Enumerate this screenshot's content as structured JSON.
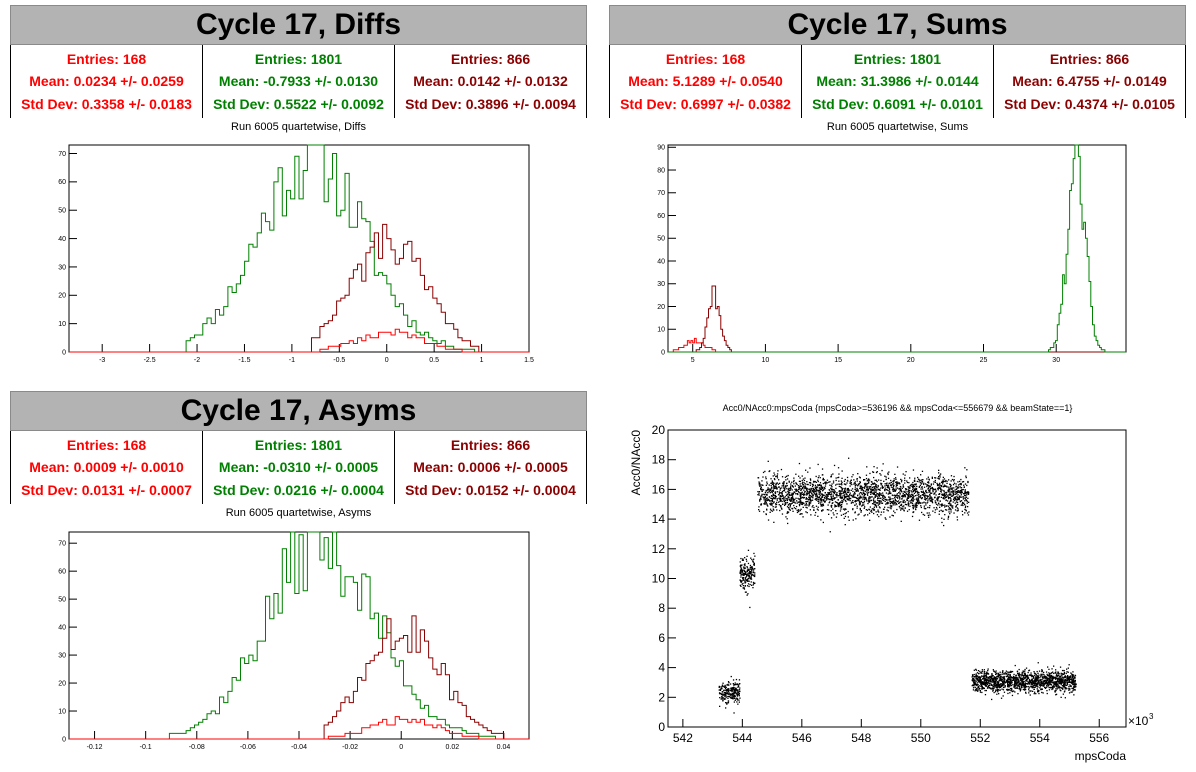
{
  "colors": {
    "red": "#ff0000",
    "green": "#008000",
    "darkred": "#8b0000",
    "header_bg": "#b3b3b3"
  },
  "panels": {
    "diffs": {
      "title": "Cycle 17, Diffs",
      "stats": [
        {
          "entries": "Entries: 168",
          "mean": "Mean: 0.0234 +/- 0.0259",
          "std": "Std Dev: 0.3358 +/- 0.0183",
          "color": "#ff0000"
        },
        {
          "entries": "Entries: 1801",
          "mean": "Mean: -0.7933 +/- 0.0130",
          "std": "Std Dev: 0.5522 +/- 0.0092",
          "color": "#008000"
        },
        {
          "entries": "Entries: 866",
          "mean": "Mean: 0.0142 +/- 0.0132",
          "std": "Std Dev: 0.3896 +/- 0.0094",
          "color": "#8b0000"
        }
      ],
      "subtitle": "Run 6005 quartetwise, Diffs"
    },
    "sums": {
      "title": "Cycle 17, Sums",
      "stats": [
        {
          "entries": "Entries: 168",
          "mean": "Mean: 5.1289 +/- 0.0540",
          "std": "Std Dev: 0.6997 +/- 0.0382",
          "color": "#ff0000"
        },
        {
          "entries": "Entries: 1801",
          "mean": "Mean: 31.3986 +/- 0.0144",
          "std": "Std Dev: 0.6091 +/- 0.0101",
          "color": "#008000"
        },
        {
          "entries": "Entries: 866",
          "mean": "Mean: 6.4755 +/- 0.0149",
          "std": "Std Dev: 0.4374 +/- 0.0105",
          "color": "#8b0000"
        }
      ],
      "subtitle": "Run 6005 quartetwise, Sums"
    },
    "asyms": {
      "title": "Cycle 17, Asyms",
      "stats": [
        {
          "entries": "Entries: 168",
          "mean": "Mean: 0.0009 +/- 0.0010",
          "std": "Std Dev: 0.0131 +/- 0.0007",
          "color": "#ff0000"
        },
        {
          "entries": "Entries: 1801",
          "mean": "Mean: -0.0310 +/- 0.0005",
          "std": "Std Dev: 0.0216 +/- 0.0004",
          "color": "#008000"
        },
        {
          "entries": "Entries: 866",
          "mean": "Mean: 0.0006 +/- 0.0005",
          "std": "Std Dev: 0.0152 +/- 0.0004",
          "color": "#8b0000"
        }
      ],
      "subtitle": "Run 6005 quartetwise, Asyms"
    },
    "scatter": {
      "title": "Acc0/NAcc0:mpsCoda {mpsCoda>=536196 && mpsCoda<=556679 && beamState==1}",
      "ylabel": "Acc0/NAcc0",
      "xlabel": "mpsCoda",
      "exponent": "×10",
      "exponent_power": "3"
    }
  },
  "chart_data": [
    {
      "type": "histogram",
      "name": "diffs",
      "xlim": [
        -3.35,
        1.5
      ],
      "ylim": [
        0,
        73
      ],
      "xticks": [
        -3,
        -2.5,
        -2,
        -1.5,
        -1,
        -0.5,
        0,
        0.5,
        1,
        1.5
      ],
      "yticks": [
        0,
        10,
        20,
        30,
        40,
        50,
        60,
        70
      ],
      "series": [
        {
          "color": "#008000",
          "mean": -0.7933,
          "std": 0.5522,
          "peak": 69,
          "lo": -2.1,
          "hi": 1.1
        },
        {
          "color": "#8b0000",
          "mean": 0.0142,
          "std": 0.3896,
          "peak": 38,
          "lo": -0.8,
          "hi": 0.95
        },
        {
          "color": "#ff0000",
          "mean": 0.0234,
          "std": 0.3358,
          "peak": 7,
          "lo": -0.85,
          "hi": 1.0
        }
      ]
    },
    {
      "type": "histogram",
      "name": "sums",
      "xlim": [
        3.3,
        34.8
      ],
      "ylim": [
        0,
        91
      ],
      "xticks": [
        5,
        10,
        15,
        20,
        25,
        30
      ],
      "yticks": [
        0,
        10,
        20,
        30,
        40,
        50,
        60,
        70,
        80,
        90
      ],
      "series": [
        {
          "color": "#ff0000",
          "mean": 5.1289,
          "std": 0.6997,
          "peak": 5,
          "lo": 3.5,
          "hi": 7.5
        },
        {
          "color": "#8b0000",
          "mean": 6.4755,
          "std": 0.4374,
          "peak": 25,
          "lo": 5.0,
          "hi": 8.0
        },
        {
          "color": "#008000",
          "mean": 31.3986,
          "std": 0.6091,
          "peak": 86,
          "lo": 29.5,
          "hi": 33.5
        }
      ]
    },
    {
      "type": "histogram",
      "name": "asyms",
      "xlim": [
        -0.13,
        0.05
      ],
      "ylim": [
        0,
        74
      ],
      "xticks": [
        -0.12,
        -0.1,
        -0.08,
        -0.06,
        -0.04,
        -0.02,
        0,
        0.02,
        0.04
      ],
      "yticks": [
        0,
        10,
        20,
        30,
        40,
        50,
        60,
        70
      ],
      "series": [
        {
          "color": "#008000",
          "mean": -0.031,
          "std": 0.0216,
          "peak": 70,
          "lo": -0.09,
          "hi": 0.04
        },
        {
          "color": "#8b0000",
          "mean": 0.0006,
          "std": 0.0152,
          "peak": 38,
          "lo": -0.03,
          "hi": 0.04
        },
        {
          "color": "#ff0000",
          "mean": 0.0009,
          "std": 0.0131,
          "peak": 7,
          "lo": -0.03,
          "hi": 0.035
        }
      ]
    },
    {
      "type": "scatter",
      "name": "mpscoda",
      "xlim": [
        541.5,
        556.9
      ],
      "ylim": [
        0,
        20
      ],
      "xticks": [
        542,
        544,
        546,
        548,
        550,
        552,
        554,
        556
      ],
      "yticks": [
        0,
        2,
        4,
        6,
        8,
        10,
        12,
        14,
        16,
        18,
        20
      ],
      "clusters": [
        {
          "x": [
            543.2,
            543.9
          ],
          "y_mean": 2.4,
          "y_std": 0.35,
          "n": 220
        },
        {
          "x": [
            543.9,
            544.4
          ],
          "y_mean": 10.4,
          "y_std": 0.55,
          "n": 200
        },
        {
          "x": [
            544.5,
            551.6
          ],
          "y_mean": 15.7,
          "y_std": 0.65,
          "n": 2400
        },
        {
          "x": [
            551.7,
            555.2
          ],
          "y_mean": 3.1,
          "y_std": 0.35,
          "n": 1500
        }
      ]
    }
  ]
}
